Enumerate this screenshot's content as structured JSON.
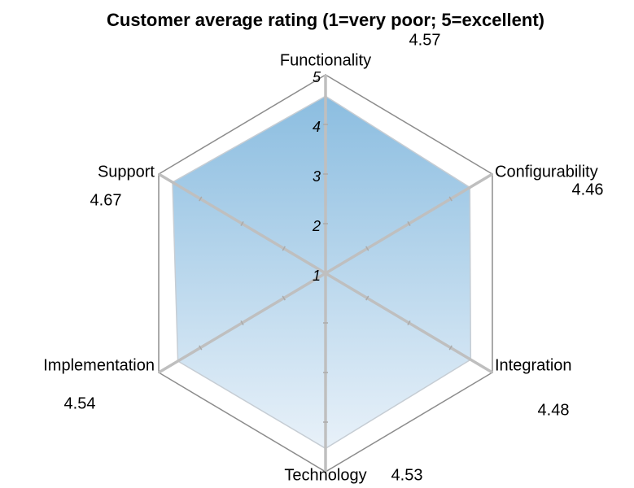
{
  "chart_data": {
    "type": "radar",
    "title": "Customer average rating (1=very poor; 5=excellent)",
    "categories": [
      "Functionality",
      "Configurability",
      "Integration",
      "Technology",
      "Implementation",
      "Support"
    ],
    "values": [
      4.57,
      4.46,
      4.48,
      4.53,
      4.54,
      4.67
    ],
    "color": "#9cc6e4",
    "ylim": [
      1,
      5
    ],
    "yticks": [
      1,
      2,
      3,
      4,
      5
    ],
    "grid": true
  }
}
